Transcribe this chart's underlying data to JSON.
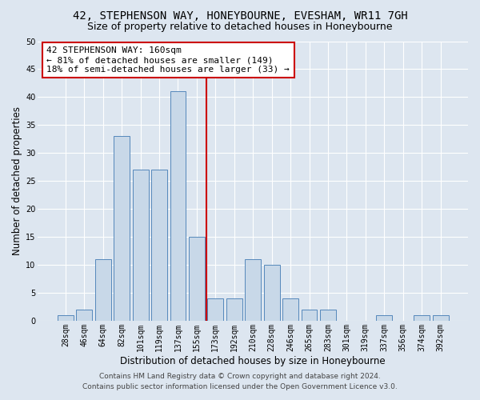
{
  "title_line1": "42, STEPHENSON WAY, HONEYBOURNE, EVESHAM, WR11 7GH",
  "title_line2": "Size of property relative to detached houses in Honeybourne",
  "xlabel": "Distribution of detached houses by size in Honeybourne",
  "ylabel": "Number of detached properties",
  "categories": [
    "28sqm",
    "46sqm",
    "64sqm",
    "82sqm",
    "101sqm",
    "119sqm",
    "137sqm",
    "155sqm",
    "173sqm",
    "192sqm",
    "210sqm",
    "228sqm",
    "246sqm",
    "265sqm",
    "283sqm",
    "301sqm",
    "319sqm",
    "337sqm",
    "356sqm",
    "374sqm",
    "392sqm"
  ],
  "values": [
    1,
    2,
    11,
    33,
    27,
    27,
    41,
    15,
    4,
    4,
    11,
    10,
    4,
    2,
    2,
    0,
    0,
    1,
    0,
    1,
    1
  ],
  "bar_color": "#c8d8e8",
  "bar_edge_color": "#5588bb",
  "vline_color": "#cc0000",
  "annotation_text": "42 STEPHENSON WAY: 160sqm\n← 81% of detached houses are smaller (149)\n18% of semi-detached houses are larger (33) →",
  "annotation_box_color": "#ffffff",
  "annotation_box_edge": "#cc0000",
  "background_color": "#dde6f0",
  "plot_bg_color": "#dde6f0",
  "ylim": [
    0,
    50
  ],
  "yticks": [
    0,
    5,
    10,
    15,
    20,
    25,
    30,
    35,
    40,
    45,
    50
  ],
  "footer_line1": "Contains HM Land Registry data © Crown copyright and database right 2024.",
  "footer_line2": "Contains public sector information licensed under the Open Government Licence v3.0.",
  "title_fontsize": 10,
  "subtitle_fontsize": 9,
  "axis_label_fontsize": 8.5,
  "tick_fontsize": 7,
  "annotation_fontsize": 8,
  "footer_fontsize": 6.5,
  "vline_x": 7.5
}
